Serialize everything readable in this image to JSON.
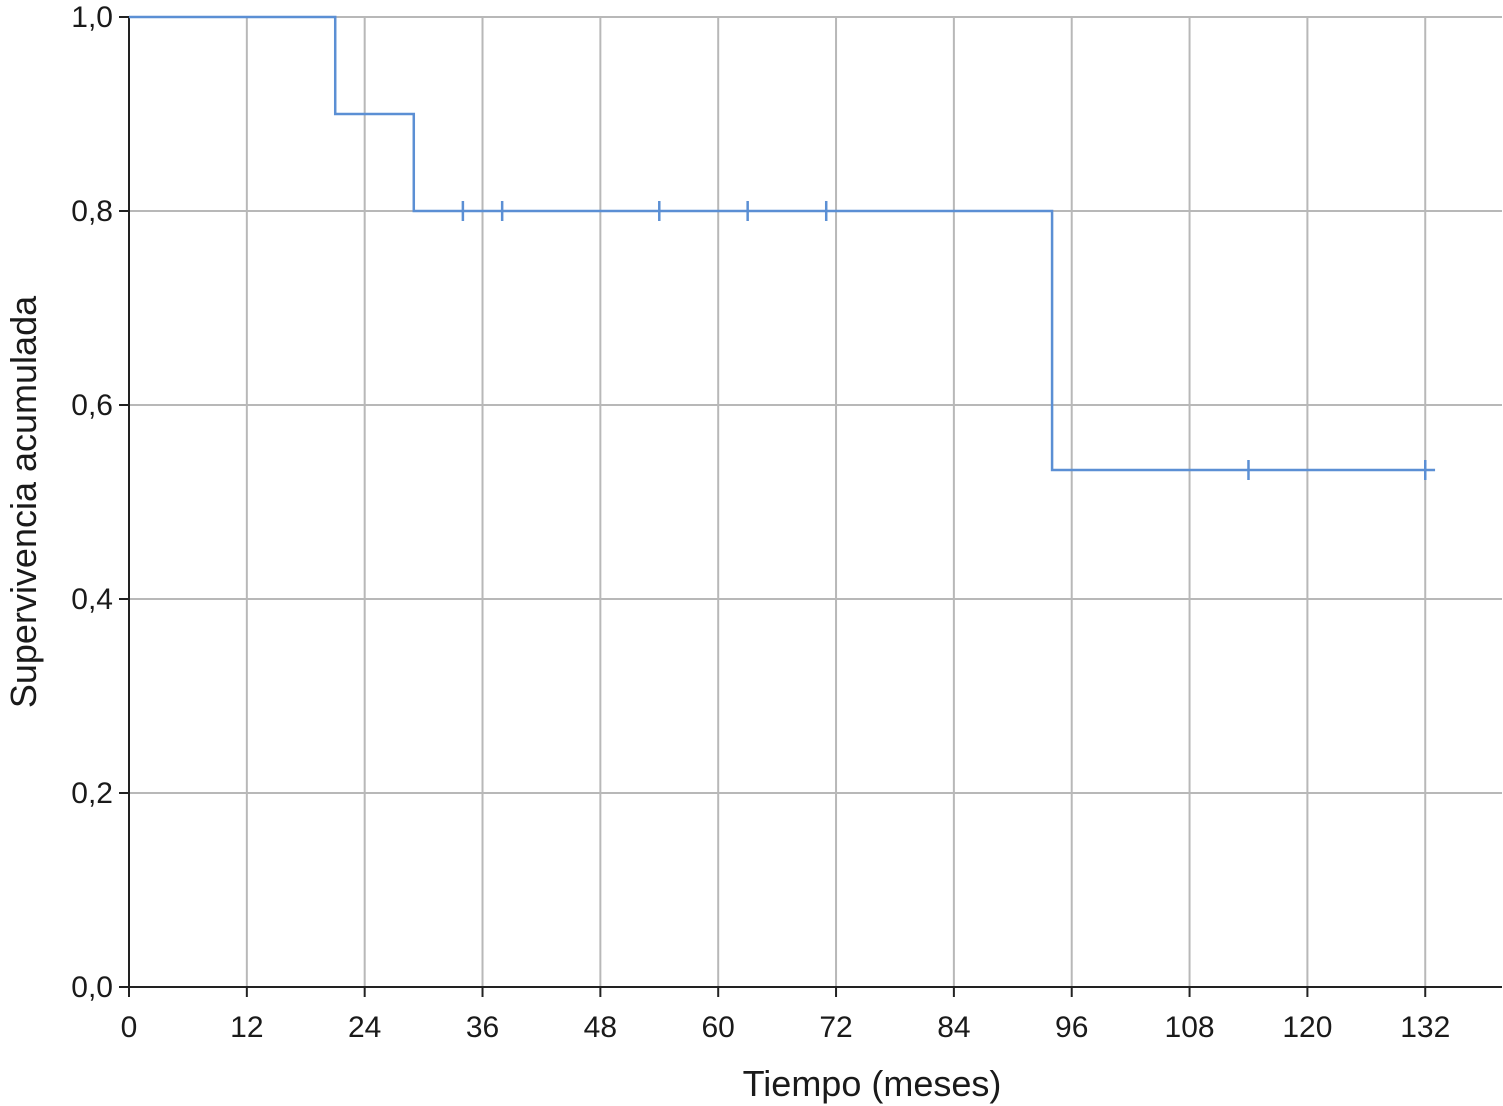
{
  "chart_data": {
    "type": "line",
    "subtype": "kaplan-meier-step",
    "xlabel": "Tiempo (meses)",
    "ylabel": "Supervivencia acumulada",
    "xlim": [
      0,
      140
    ],
    "ylim": [
      0,
      1
    ],
    "x_ticks": [
      0,
      12,
      24,
      36,
      48,
      60,
      72,
      84,
      96,
      108,
      120,
      132
    ],
    "x_tick_labels": [
      "0",
      "12",
      "24",
      "36",
      "48",
      "60",
      "72",
      "84",
      "96",
      "108",
      "120",
      "132"
    ],
    "y_ticks": [
      0,
      0.2,
      0.4,
      0.6,
      0.8,
      1.0
    ],
    "y_tick_labels": [
      "0,0",
      "0,2",
      "0,4",
      "0,6",
      "0,8",
      "1,0"
    ],
    "grid": true,
    "line_color": "#5b8fd4",
    "series": [
      {
        "steps": [
          {
            "x": 0,
            "y": 1.0
          },
          {
            "x": 21,
            "y": 0.9
          },
          {
            "x": 29,
            "y": 0.8
          },
          {
            "x": 94,
            "y": 0.533
          }
        ],
        "end_x": 133,
        "censored": [
          {
            "x": 34,
            "y": 0.8
          },
          {
            "x": 38,
            "y": 0.8
          },
          {
            "x": 54,
            "y": 0.8
          },
          {
            "x": 63,
            "y": 0.8
          },
          {
            "x": 71,
            "y": 0.8
          },
          {
            "x": 114,
            "y": 0.533
          },
          {
            "x": 132,
            "y": 0.533
          }
        ]
      }
    ]
  }
}
